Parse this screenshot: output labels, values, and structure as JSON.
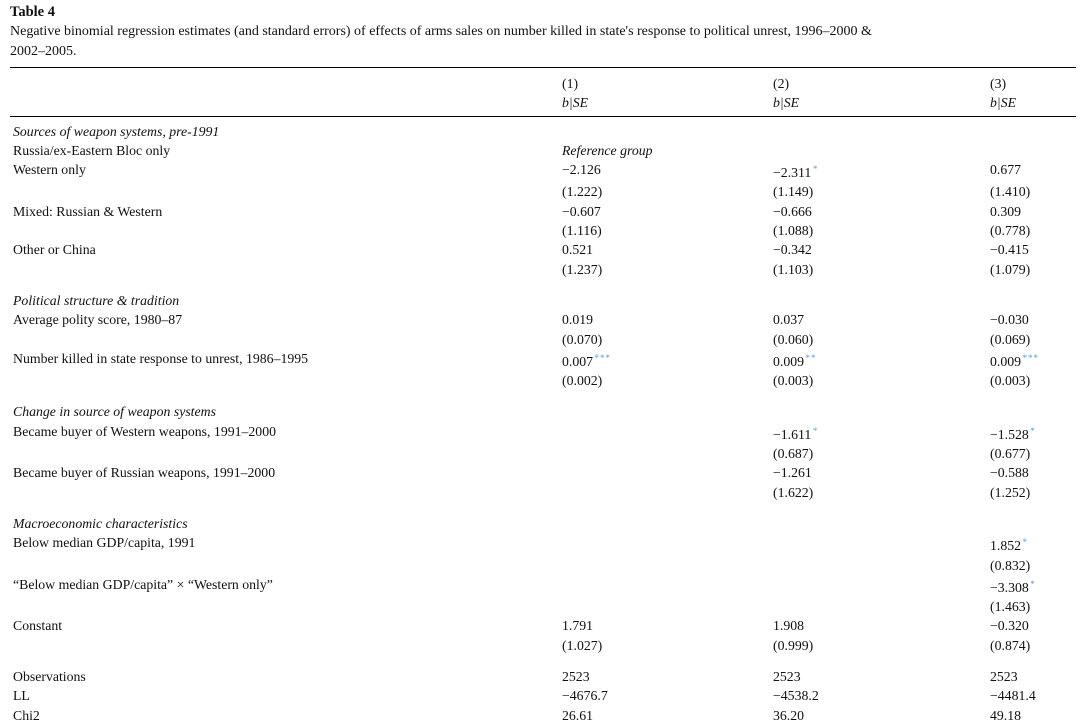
{
  "caption": {
    "title": "Table 4",
    "subtitle_line1": "Negative binomial regression estimates (and standard errors) of effects of arms sales on number killed in state's response to political unrest, 1996–2000 &",
    "subtitle_line2": "2002–2005."
  },
  "colors": {
    "significance_star": "#5b9bd5",
    "text": "#111111",
    "rule": "#000000"
  },
  "table": {
    "columns": [
      {
        "num": "(1)",
        "bse": "b|SE"
      },
      {
        "num": "(2)",
        "bse": "b|SE"
      },
      {
        "num": "(3)",
        "bse": "b|SE"
      }
    ],
    "rows": [
      {
        "type": "section",
        "label": "Sources of weapon systems, pre-1991"
      },
      {
        "type": "coef",
        "label": "Russia/ex-Eastern Bloc only",
        "ref": true,
        "c": [
          "Reference group",
          "",
          ""
        ]
      },
      {
        "type": "coef",
        "label": "Western only",
        "c": [
          "−2.126",
          "−2.311",
          "0.677"
        ],
        "stars": [
          "",
          "*",
          ""
        ]
      },
      {
        "type": "se",
        "label": "",
        "c": [
          "(1.222)",
          "(1.149)",
          "(1.410)"
        ]
      },
      {
        "type": "coef",
        "label": "Mixed: Russian & Western",
        "c": [
          "−0.607",
          "−0.666",
          "0.309"
        ]
      },
      {
        "type": "se",
        "label": "",
        "c": [
          "(1.116)",
          "(1.088)",
          "(0.778)"
        ]
      },
      {
        "type": "coef",
        "label": "Other or China",
        "c": [
          "0.521",
          "−0.342",
          "−0.415"
        ]
      },
      {
        "type": "se",
        "label": "",
        "c": [
          "(1.237)",
          "(1.103)",
          "(1.079)"
        ]
      },
      {
        "type": "spacer"
      },
      {
        "type": "section",
        "label": "Political structure & tradition"
      },
      {
        "type": "coef",
        "label": "Average polity score, 1980–87",
        "c": [
          "0.019",
          "0.037",
          "−0.030"
        ]
      },
      {
        "type": "se",
        "label": "",
        "c": [
          "(0.070)",
          "(0.060)",
          "(0.069)"
        ]
      },
      {
        "type": "coef",
        "label": "Number killed in state response to unrest, 1986–1995",
        "c": [
          "0.007",
          "0.009",
          "0.009"
        ],
        "stars": [
          "***",
          "**",
          "***"
        ]
      },
      {
        "type": "se",
        "label": "",
        "c": [
          "(0.002)",
          "(0.003)",
          "(0.003)"
        ]
      },
      {
        "type": "spacer"
      },
      {
        "type": "section",
        "label": "Change in source of weapon systems"
      },
      {
        "type": "coef",
        "label": "Became buyer of Western weapons, 1991–2000",
        "c": [
          "",
          "−1.611",
          "−1.528"
        ],
        "stars": [
          "",
          "*",
          "*"
        ]
      },
      {
        "type": "se",
        "label": "",
        "c": [
          "",
          "(0.687)",
          "(0.677)"
        ]
      },
      {
        "type": "coef",
        "label": "Became buyer of Russian weapons, 1991–2000",
        "c": [
          "",
          "−1.261",
          "−0.588"
        ]
      },
      {
        "type": "se",
        "label": "",
        "c": [
          "",
          "(1.622)",
          "(1.252)"
        ]
      },
      {
        "type": "spacer"
      },
      {
        "type": "section",
        "label": "Macroeconomic characteristics"
      },
      {
        "type": "coef",
        "label": "Below median GDP/capita, 1991",
        "c": [
          "",
          "",
          "1.852"
        ],
        "stars": [
          "",
          "",
          "*"
        ]
      },
      {
        "type": "se",
        "label": "",
        "c": [
          "",
          "",
          "(0.832)"
        ]
      },
      {
        "type": "coef",
        "label": "“Below median GDP/capita” × “Western only”",
        "c": [
          "",
          "",
          "−3.308"
        ],
        "stars": [
          "",
          "",
          "*"
        ]
      },
      {
        "type": "se",
        "label": "",
        "c": [
          "",
          "",
          "(1.463)"
        ]
      },
      {
        "type": "coef",
        "label": "Constant",
        "c": [
          "1.791",
          "1.908",
          "−0.320"
        ]
      },
      {
        "type": "se",
        "label": "",
        "c": [
          "(1.027)",
          "(0.999)",
          "(0.874)"
        ]
      },
      {
        "type": "spacer"
      },
      {
        "type": "stat",
        "label": "Observations",
        "c": [
          "2523",
          "2523",
          "2523"
        ]
      },
      {
        "type": "stat",
        "label": "LL",
        "c": [
          "−4676.7",
          "−4538.2",
          "−4481.4"
        ]
      },
      {
        "type": "stat",
        "label": "Chi2",
        "c": [
          "26.61",
          "36.20",
          "49.18"
        ]
      }
    ]
  },
  "footnote": {
    "marker": "*"
  }
}
